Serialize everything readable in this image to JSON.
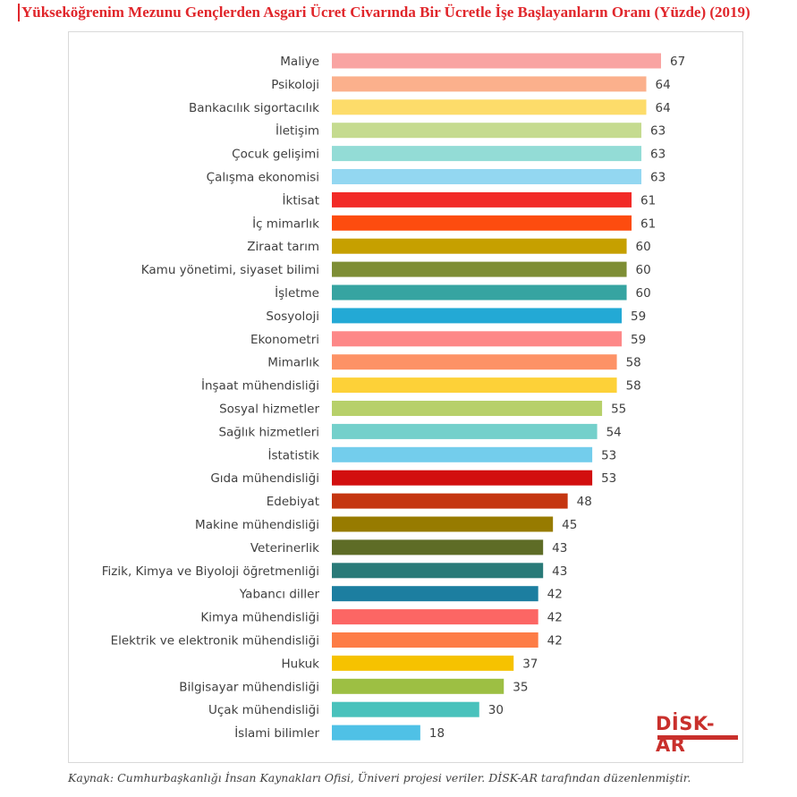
{
  "title": "Yükseköğrenim Mezunu Gençlerden Asgari Ücret Civarında Bir Ücretle İşe Başlayanların Oranı (Yüzde) (2019)",
  "source": "Kaynak: Cumhurbaşkanlığı İnsan Kaynakları Ofisi, Üniveri projesi veriler. DİSK-AR tarafından düzenlenmiştir.",
  "logo": {
    "text": "DİSK-AR"
  },
  "chart_data": {
    "type": "bar",
    "orientation": "horizontal",
    "title": "Yükseköğrenim Mezunu Gençlerden Asgari Ücret Civarında Bir Ücretle İşe Başlayanların Oranı (Yüzde) (2019)",
    "xlabel": "",
    "ylabel": "",
    "xlim": [
      0,
      67
    ],
    "grid": false,
    "legend": "none",
    "categories": [
      "Maliye",
      "Psikoloji",
      "Bankacılık sigortacılık",
      "İletişim",
      "Çocuk gelişimi",
      "Çalışma ekonomisi",
      "İktisat",
      "İç mimarlık",
      "Ziraat tarım",
      "Kamu yönetimi, siyaset bilimi",
      "İşletme",
      "Sosyoloji",
      "Ekonometri",
      "Mimarlık",
      "İnşaat mühendisliği",
      "Sosyal hizmetler",
      "Sağlık hizmetleri",
      "İstatistik",
      "Gıda mühendisliği",
      "Edebiyat",
      "Makine mühendisliği",
      "Veterinerlik",
      "Fizik, Kimya ve Biyoloji öğretmenliği",
      "Yabancı diller",
      "Kimya mühendisliği",
      "Elektrik ve elektronik mühendisliği",
      "Hukuk",
      "Bilgisayar mühendisliği",
      "Uçak mühendisliği",
      "İslami bilimler"
    ],
    "values": [
      67,
      64,
      64,
      63,
      63,
      63,
      61,
      61,
      60,
      60,
      60,
      59,
      59,
      58,
      58,
      55,
      54,
      53,
      53,
      48,
      45,
      43,
      43,
      42,
      42,
      42,
      37,
      35,
      30,
      18
    ],
    "colors": [
      "#f9a4a2",
      "#fbb08c",
      "#fddc6a",
      "#c5db8f",
      "#93dcd6",
      "#93d7f1",
      "#f22a27",
      "#fd4c0f",
      "#c6a000",
      "#7e8e35",
      "#36a4a1",
      "#23a9d5",
      "#fd8888",
      "#fd9266",
      "#fdd138",
      "#b7d06a",
      "#74d0cb",
      "#73cdec",
      "#d20f0f",
      "#c53611",
      "#977b00",
      "#5e6c26",
      "#297a78",
      "#1c7ea0",
      "#fc6664",
      "#fd7c46",
      "#f6c200",
      "#9dbf43",
      "#49c2bc",
      "#4fc1e6"
    ]
  }
}
